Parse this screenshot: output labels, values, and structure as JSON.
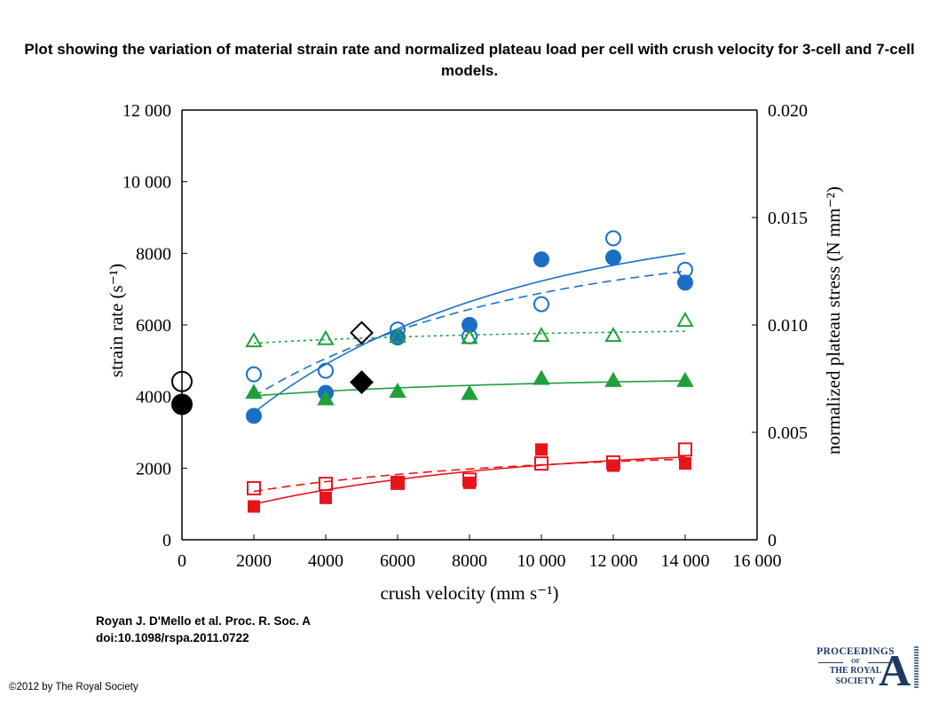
{
  "title": "Plot showing the variation of material strain rate and normalized plateau load per cell with crush velocity for 3-cell and 7-cell models.",
  "citation": {
    "line1": "Royan J. D'Mello et al. Proc. R. Soc. A",
    "line2": "doi:10.1098/rspa.2011.0722"
  },
  "copyright": "©2012 by The Royal Society",
  "logo": {
    "line1": "PROCEEDINGS",
    "line2": "OF",
    "line3": "THE ROYAL",
    "line4": "SOCIETY",
    "letter": "A",
    "color": "#1f3864"
  },
  "colors": {
    "blue": "#1a6fc4",
    "green": "#1fa03c",
    "red": "#e8141b",
    "black": "#000000"
  },
  "chart_data": {
    "type": "scatter",
    "xlabel": "crush velocity (mm s⁻¹)",
    "ylabel": "strain rate (s⁻¹)",
    "y2label": "normalized plateau stress (N mm⁻²)",
    "xlim": [
      0,
      16000
    ],
    "ylim": [
      0,
      12000
    ],
    "y2lim": [
      0,
      0.02
    ],
    "xticks": [
      "0",
      "2000",
      "4000",
      "6000",
      "8000",
      "10 000",
      "12 000",
      "14 000",
      "16 000"
    ],
    "xtick_values": [
      0,
      2000,
      4000,
      6000,
      8000,
      10000,
      12000,
      14000,
      16000
    ],
    "yticks": [
      "0",
      "2000",
      "4000",
      "6000",
      "8000",
      "10 000",
      "12 000"
    ],
    "ytick_values": [
      0,
      2000,
      4000,
      6000,
      8000,
      10000,
      12000
    ],
    "y2ticks": [
      "0",
      "0.005",
      "0.010",
      "0.015",
      "0.020"
    ],
    "y2tick_values": [
      0,
      0.005,
      0.01,
      0.015,
      0.02
    ],
    "grid": false,
    "series": [
      {
        "marker": "circle-open",
        "color": "#1a6fc4",
        "axis": "left",
        "x": [
          2000,
          4000,
          6000,
          8000,
          10000,
          12000,
          14000
        ],
        "y": [
          4620,
          4720,
          5870,
          5680,
          6580,
          8420,
          7540
        ],
        "fit": "dashed"
      },
      {
        "marker": "circle-filled",
        "color": "#1a6fc4",
        "axis": "left",
        "x": [
          2000,
          4000,
          6000,
          8000,
          10000,
          12000,
          14000
        ],
        "y": [
          3460,
          4100,
          5650,
          6000,
          7830,
          7880,
          7180
        ],
        "fit": "solid"
      },
      {
        "marker": "triangle-open",
        "color": "#1fa03c",
        "axis": "right",
        "x": [
          2000,
          4000,
          6000,
          8000,
          10000,
          12000,
          14000
        ],
        "y": [
          0.00925,
          0.00935,
          0.00945,
          0.0094,
          0.0095,
          0.0095,
          0.0102
        ],
        "fit": "dotted"
      },
      {
        "marker": "triangle-filled",
        "color": "#1fa03c",
        "axis": "right",
        "x": [
          2000,
          4000,
          6000,
          8000,
          10000,
          12000,
          14000
        ],
        "y": [
          0.00685,
          0.00655,
          0.0069,
          0.0068,
          0.0075,
          0.0074,
          0.0074
        ],
        "fit": "solid"
      },
      {
        "marker": "square-open",
        "color": "#e8141b",
        "axis": "right",
        "x": [
          2000,
          4000,
          6000,
          8000,
          10000,
          12000,
          14000
        ],
        "y": [
          0.0024,
          0.0026,
          0.00265,
          0.0028,
          0.00355,
          0.0036,
          0.0042
        ],
        "fit": "dashed"
      },
      {
        "marker": "square-filled",
        "color": "#e8141b",
        "axis": "right",
        "x": [
          2000,
          4000,
          6000,
          8000,
          10000,
          12000,
          14000
        ],
        "y": [
          0.00155,
          0.00195,
          0.00265,
          0.00265,
          0.0042,
          0.00345,
          0.00355
        ],
        "fit": "solid"
      },
      {
        "marker": "diamond-open",
        "color": "#000000",
        "axis": "left",
        "x": [
          5000
        ],
        "y": [
          5780
        ]
      },
      {
        "marker": "diamond-filled",
        "color": "#000000",
        "axis": "left",
        "x": [
          5000
        ],
        "y": [
          4400
        ]
      },
      {
        "marker": "circle-open-large",
        "color": "#000000",
        "axis": "left",
        "x": [
          0
        ],
        "y": [
          4420
        ]
      },
      {
        "marker": "circle-filled-large",
        "color": "#000000",
        "axis": "left",
        "x": [
          0
        ],
        "y": [
          3780
        ]
      }
    ],
    "fits": [
      {
        "style": "dashed",
        "color": "#1a6fc4",
        "axis": "left",
        "from": [
          2000,
          4000
        ],
        "to": [
          14000,
          7500
        ],
        "shape": "curve-concave"
      },
      {
        "style": "solid",
        "color": "#1a6fc4",
        "axis": "left",
        "from": [
          2000,
          3550
        ],
        "to": [
          14000,
          8000
        ],
        "shape": "curve-concave"
      },
      {
        "style": "dotted",
        "color": "#1fa03c",
        "axis": "right",
        "from": [
          2000,
          0.00915
        ],
        "to": [
          14000,
          0.0097
        ],
        "shape": "curve-concave"
      },
      {
        "style": "solid",
        "color": "#1fa03c",
        "axis": "right",
        "from": [
          2000,
          0.0067
        ],
        "to": [
          14000,
          0.0074
        ],
        "shape": "curve-concave"
      },
      {
        "style": "dashed",
        "color": "#e8141b",
        "axis": "right",
        "from": [
          2000,
          0.00225
        ],
        "to": [
          14000,
          0.00375
        ],
        "shape": "curve-concave"
      },
      {
        "style": "solid",
        "color": "#e8141b",
        "axis": "right",
        "from": [
          2000,
          0.00165
        ],
        "to": [
          14000,
          0.00385
        ],
        "shape": "curve-concave"
      }
    ]
  }
}
